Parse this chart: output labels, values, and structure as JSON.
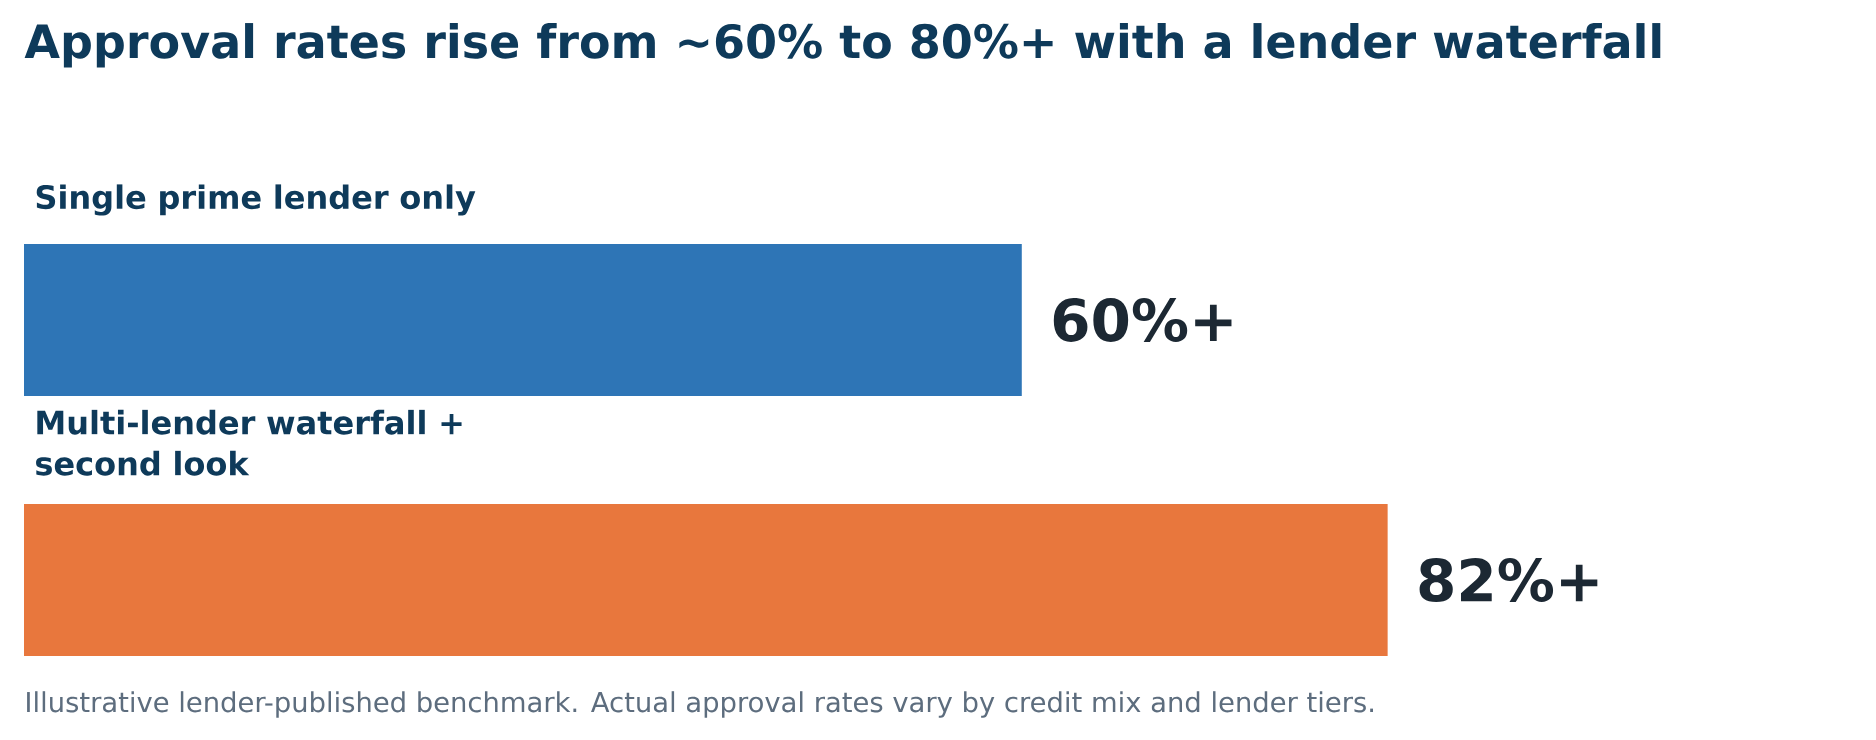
{
  "chart_data": {
    "type": "bar",
    "orientation": "horizontal",
    "title": "Approval rates rise from ~60% to 80%+ with a lender waterfall",
    "categories": [
      "Single prime lender only",
      "Multi-lender waterfall + second look"
    ],
    "values": [
      60,
      82
    ],
    "colors": [
      "#2e75b6",
      "#e8773d"
    ],
    "value_labels": [
      "60%+",
      "82%+"
    ],
    "tick_labels": false,
    "annotations": [
      "Illustrative lender-published benchmark. Actual approval rates vary by credit mix and lender tiers."
    ]
  }
}
